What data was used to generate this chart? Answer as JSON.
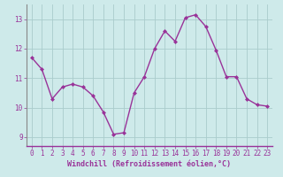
{
  "x": [
    0,
    1,
    2,
    3,
    4,
    5,
    6,
    7,
    8,
    9,
    10,
    11,
    12,
    13,
    14,
    15,
    16,
    17,
    18,
    19,
    20,
    21,
    22,
    23
  ],
  "y": [
    11.7,
    11.3,
    10.3,
    10.7,
    10.8,
    10.7,
    10.4,
    9.85,
    9.1,
    9.15,
    10.5,
    11.05,
    12.0,
    12.6,
    12.25,
    13.05,
    13.15,
    12.75,
    11.95,
    11.05,
    11.05,
    10.3,
    10.1,
    10.05
  ],
  "line_color": "#993399",
  "marker": "D",
  "markersize": 2.0,
  "linewidth": 1.0,
  "xlabel": "Windchill (Refroidissement éolien,°C)",
  "xlabel_fontsize": 6.0,
  "xtick_labels": [
    "0",
    "1",
    "2",
    "3",
    "4",
    "5",
    "6",
    "7",
    "8",
    "9",
    "10",
    "11",
    "12",
    "13",
    "14",
    "15",
    "16",
    "17",
    "18",
    "19",
    "20",
    "21",
    "22",
    "23"
  ],
  "ytick_labels": [
    "9",
    "10",
    "11",
    "12",
    "13"
  ],
  "yticks": [
    9,
    10,
    11,
    12,
    13
  ],
  "ylim": [
    8.7,
    13.5
  ],
  "xlim": [
    -0.5,
    23.5
  ],
  "bg_color": "#ceeaea",
  "grid_color": "#aacccc",
  "tick_color": "#993399",
  "label_color": "#993399",
  "tick_fontsize": 5.5,
  "spine_color": "#888888"
}
